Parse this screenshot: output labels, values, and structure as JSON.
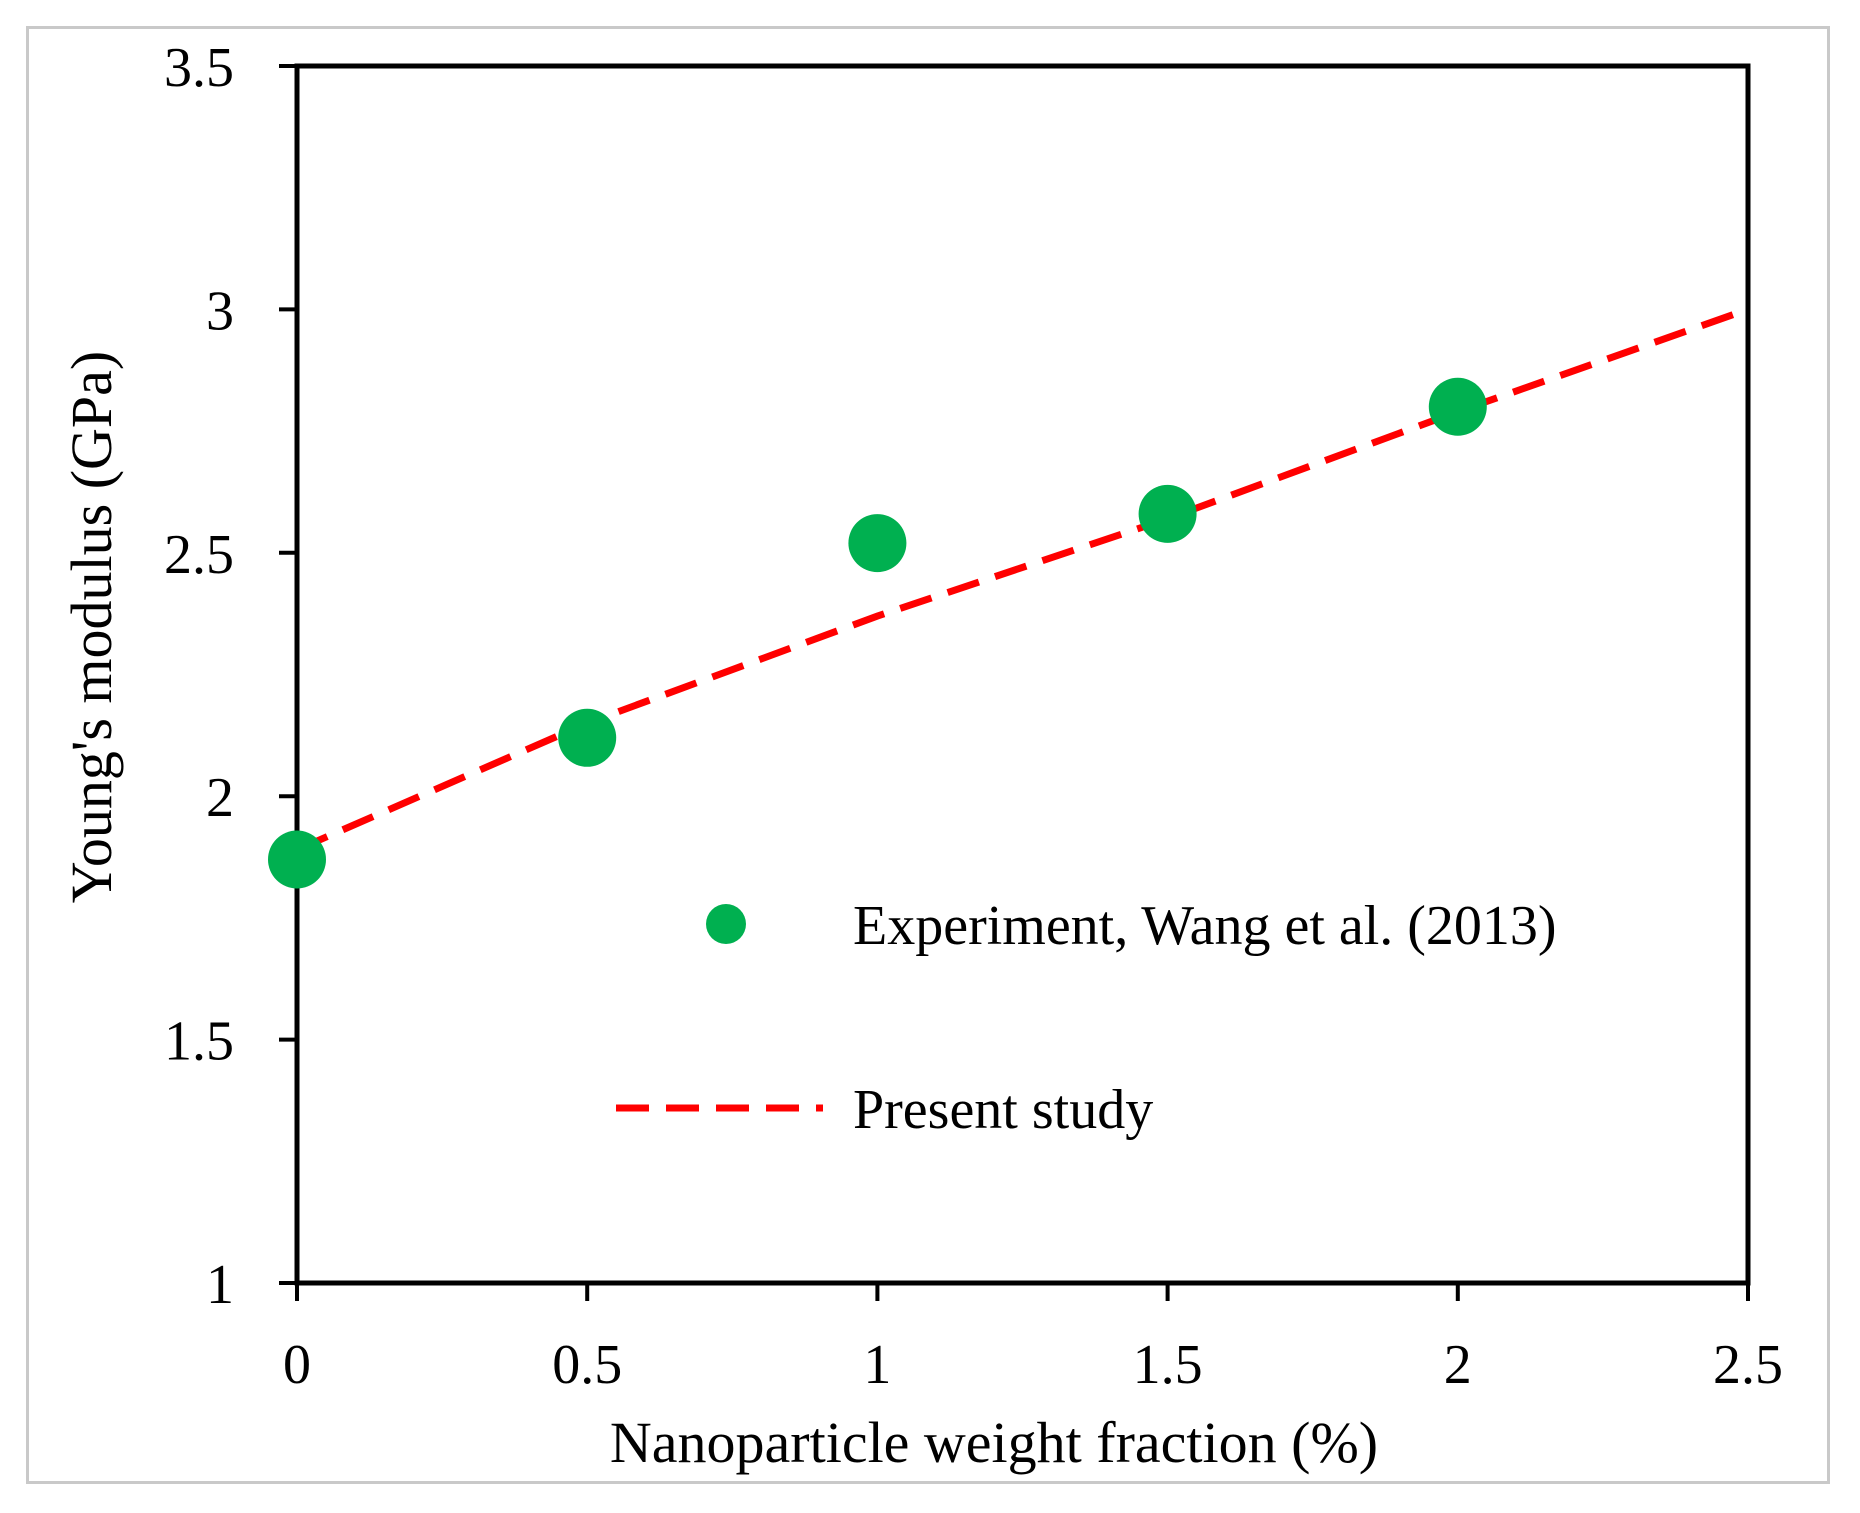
{
  "chart_data": {
    "type": "scatter",
    "title": "",
    "xlabel": "Nanoparticle weight fraction (%)",
    "ylabel": "Young's modulus (GPa)",
    "xlim": [
      0,
      2.5
    ],
    "ylim": [
      1,
      3.5
    ],
    "xticks": [
      0,
      0.5,
      1,
      1.5,
      2,
      2.5
    ],
    "xtick_labels": [
      "0",
      "0.5",
      "1",
      "1.5",
      "2",
      "2.5"
    ],
    "yticks": [
      1,
      1.5,
      2,
      2.5,
      3,
      3.5
    ],
    "ytick_labels": [
      "1",
      "1.5",
      "2",
      "2.5",
      "3",
      "3.5"
    ],
    "grid": false,
    "legend_position": "right-middle",
    "series": [
      {
        "name": "Experiment, Wang et al. (2013)",
        "kind": "scatter",
        "color": "#00b050",
        "x": [
          0,
          0.5,
          1,
          1.5,
          2
        ],
        "y": [
          1.87,
          2.12,
          2.52,
          2.58,
          2.8
        ]
      },
      {
        "name": "Present study",
        "kind": "dashed-line",
        "color": "#ff0000",
        "x": [
          0,
          0.5,
          1,
          1.5,
          2,
          2.5
        ],
        "y": [
          1.89,
          2.15,
          2.37,
          2.57,
          2.79,
          3.0
        ]
      }
    ]
  }
}
